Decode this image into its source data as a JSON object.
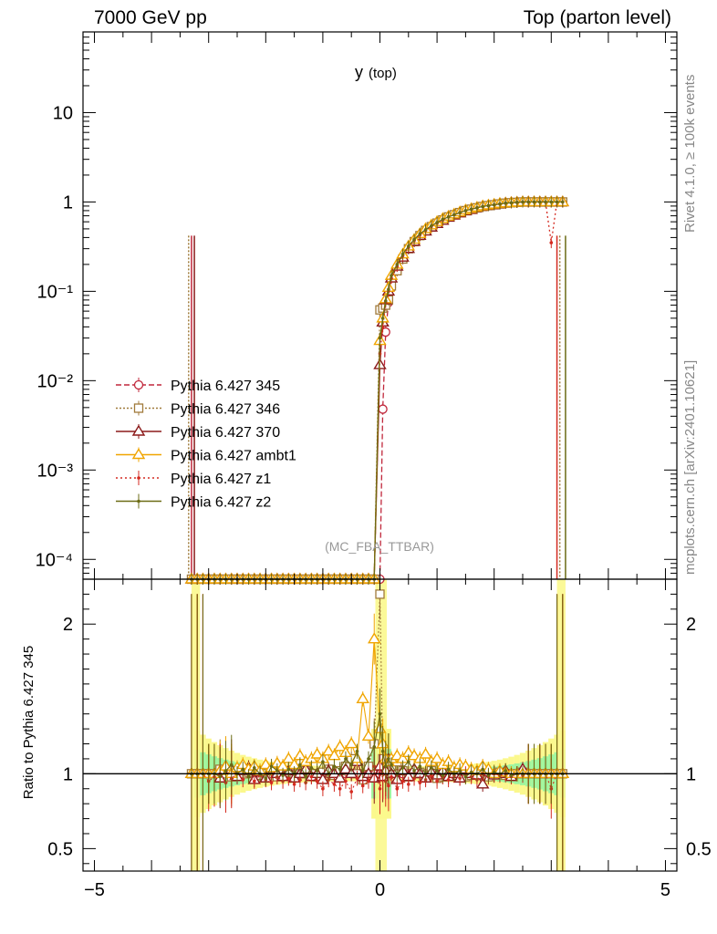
{
  "header": {
    "left": "7000 GeV pp",
    "right": "Top (parton level)"
  },
  "side_labels": {
    "rivet": "Rivet 4.1.0, ≥ 100k events",
    "mcplots": "mcplots.cern.ch [arXiv:2401.10621]"
  },
  "chart_data": {
    "type": "line",
    "title": "y",
    "title_sub": "(top)",
    "watermark": "(MC_FBA_TTBAR)",
    "xlim": [
      -5.2,
      5.2
    ],
    "x_ticks": [
      "−5",
      "0",
      "5"
    ],
    "x_tick_values": [
      -5,
      0,
      5
    ],
    "top_panel": {
      "yscale": "log",
      "ylim": [
        6e-05,
        80
      ],
      "y_tick_labels": [
        "10",
        "1",
        "10⁻¹",
        "10⁻²",
        "10⁻³",
        "10⁻⁴"
      ],
      "y_tick_values": [
        10,
        1,
        0.1,
        0.01,
        0.001,
        0.0001
      ]
    },
    "ratio_panel": {
      "ylabel": "Ratio to Pythia 6.427 345",
      "ylim": [
        0.35,
        2.3
      ],
      "y_tick_labels": [
        "2",
        "1",
        "0.5"
      ],
      "y_tick_values": [
        2,
        1,
        0.5
      ]
    },
    "x": [
      -3.3,
      -3.2,
      -3.1,
      -3.0,
      -2.9,
      -2.8,
      -2.7,
      -2.6,
      -2.5,
      -2.4,
      -2.3,
      -2.2,
      -2.1,
      -2.0,
      -1.9,
      -1.8,
      -1.7,
      -1.6,
      -1.5,
      -1.4,
      -1.3,
      -1.2,
      -1.1,
      -1.0,
      -0.9,
      -0.8,
      -0.7,
      -0.6,
      -0.5,
      -0.4,
      -0.3,
      -0.2,
      -0.1,
      0.0,
      0.05,
      0.1,
      0.15,
      0.2,
      0.3,
      0.4,
      0.5,
      0.6,
      0.7,
      0.8,
      0.9,
      1.0,
      1.1,
      1.2,
      1.3,
      1.4,
      1.5,
      1.6,
      1.7,
      1.8,
      1.9,
      2.0,
      2.1,
      2.2,
      2.3,
      2.4,
      2.5,
      2.6,
      2.7,
      2.8,
      2.9,
      3.0,
      3.1,
      3.2
    ],
    "series": [
      {
        "name": "Pythia 6.427 345",
        "color": "#c0273b",
        "marker": "open-circle",
        "dash": "6,3",
        "values": [
          6e-05,
          6e-05,
          6e-05,
          6e-05,
          6e-05,
          6e-05,
          6e-05,
          6e-05,
          6e-05,
          6e-05,
          6e-05,
          6e-05,
          6e-05,
          6e-05,
          6e-05,
          6e-05,
          6e-05,
          6e-05,
          6e-05,
          6e-05,
          6e-05,
          6e-05,
          6e-05,
          6e-05,
          6e-05,
          6e-05,
          6e-05,
          6e-05,
          6e-05,
          6e-05,
          6e-05,
          6e-05,
          6e-05,
          6e-05,
          0.0048,
          0.035,
          0.075,
          0.11,
          0.17,
          0.23,
          0.3,
          0.36,
          0.42,
          0.48,
          0.53,
          0.58,
          0.63,
          0.68,
          0.72,
          0.76,
          0.8,
          0.83,
          0.86,
          0.89,
          0.91,
          0.93,
          0.95,
          0.97,
          0.98,
          0.99,
          1.0,
          1.0,
          1.0,
          1.0,
          1.0,
          1.0,
          1.0,
          1.0
        ],
        "ratio": [
          1.0,
          1.0,
          1.0,
          1.0,
          1.0,
          1.0,
          1.0,
          1.0,
          1.0,
          1.0,
          1.0,
          1.0,
          1.0,
          1.0,
          1.0,
          1.0,
          1.0,
          1.0,
          1.0,
          1.0,
          1.0,
          1.0,
          1.0,
          1.0,
          1.0,
          1.0,
          1.0,
          1.0,
          1.0,
          1.0,
          1.0,
          1.0,
          1.0,
          1.0,
          1.0,
          1.0,
          1.0,
          1.0,
          1.0,
          1.0,
          1.0,
          1.0,
          1.0,
          1.0,
          1.0,
          1.0,
          1.0,
          1.0,
          1.0,
          1.0,
          1.0,
          1.0,
          1.0,
          1.0,
          1.0,
          1.0,
          1.0,
          1.0,
          1.0,
          1.0,
          1.0,
          1.0,
          1.0,
          1.0,
          1.0,
          1.0,
          1.0,
          1.0
        ]
      },
      {
        "name": "Pythia 6.427 346",
        "color": "#a07a3a",
        "marker": "open-square",
        "dash": "2,2",
        "values": [
          6e-05,
          6e-05,
          6e-05,
          6e-05,
          6e-05,
          6e-05,
          6e-05,
          6e-05,
          6e-05,
          6e-05,
          6e-05,
          6e-05,
          6e-05,
          6e-05,
          6e-05,
          6e-05,
          6e-05,
          6e-05,
          6e-05,
          6e-05,
          6e-05,
          6e-05,
          6e-05,
          6e-05,
          6e-05,
          6e-05,
          6e-05,
          6e-05,
          6e-05,
          6e-05,
          6e-05,
          6e-05,
          6e-05,
          0.062,
          0.065,
          0.07,
          0.08,
          0.115,
          0.17,
          0.23,
          0.3,
          0.36,
          0.42,
          0.48,
          0.53,
          0.58,
          0.63,
          0.68,
          0.72,
          0.76,
          0.8,
          0.83,
          0.86,
          0.89,
          0.91,
          0.93,
          0.95,
          0.97,
          0.98,
          0.99,
          1.0,
          1.0,
          1.0,
          1.0,
          1.0,
          1.0,
          1.0,
          1.0
        ],
        "ratio": [
          1.0,
          1.0,
          1.0,
          1.0,
          1.0,
          1.03,
          1.0,
          0.98,
          1.02,
          1.0,
          1.01,
          1.02,
          0.99,
          1.0,
          1.02,
          0.98,
          1.0,
          1.01,
          0.99,
          1.0,
          1.02,
          1.0,
          0.98,
          1.01,
          1.03,
          0.99,
          1.02,
          1.05,
          1.1,
          1.0,
          0.96,
          1.05,
          1.2,
          2.2,
          1.1,
          1.02,
          1.0,
          1.05,
          1.08,
          1.02,
          0.98,
          1.0,
          1.01,
          0.99,
          1.02,
          0.97,
          0.98,
          1.0,
          0.99,
          1.01,
          0.98,
          0.99,
          1.0,
          1.02,
          0.98,
          1.0,
          1.01,
          0.99,
          1.0,
          1.0,
          1.01,
          1.0,
          1.0,
          1.0,
          1.0,
          1.0,
          1.0,
          1.0
        ]
      },
      {
        "name": "Pythia 6.427 370",
        "color": "#8b1a1a",
        "marker": "open-triangle",
        "dash": "",
        "values": [
          6e-05,
          6e-05,
          6e-05,
          6e-05,
          6e-05,
          6e-05,
          6e-05,
          6e-05,
          6e-05,
          6e-05,
          6e-05,
          6e-05,
          6e-05,
          6e-05,
          6e-05,
          6e-05,
          6e-05,
          6e-05,
          6e-05,
          6e-05,
          6e-05,
          6e-05,
          6e-05,
          6e-05,
          6e-05,
          6e-05,
          6e-05,
          6e-05,
          6e-05,
          6e-05,
          6e-05,
          6e-05,
          6e-05,
          0.015,
          0.045,
          0.08,
          0.1,
          0.14,
          0.19,
          0.24,
          0.3,
          0.36,
          0.42,
          0.47,
          0.52,
          0.57,
          0.62,
          0.67,
          0.71,
          0.75,
          0.79,
          0.82,
          0.86,
          0.89,
          0.91,
          0.93,
          0.95,
          0.97,
          0.98,
          0.99,
          1.0,
          1.0,
          1.0,
          1.0,
          1.0,
          1.0,
          1.0,
          1.0
        ],
        "ratio": [
          1.0,
          1.0,
          1.0,
          1.0,
          1.0,
          0.97,
          1.05,
          1.03,
          0.98,
          1.02,
          1.04,
          0.96,
          1.01,
          0.97,
          1.03,
          1.0,
          0.98,
          1.02,
          0.97,
          1.0,
          1.03,
          0.98,
          1.0,
          0.96,
          1.02,
          1.0,
          0.97,
          1.03,
          1.0,
          1.08,
          0.98,
          1.0,
          0.97,
          1.05,
          0.98,
          1.02,
          1.1,
          1.0,
          0.96,
          1.02,
          0.98,
          1.03,
          1.0,
          0.97,
          1.01,
          0.99,
          1.02,
          0.98,
          1.0,
          0.97,
          1.03,
          1.0,
          0.99,
          0.93,
          1.01,
          0.99,
          1.0,
          1.02,
          0.98,
          1.0,
          1.03,
          1.0,
          1.0,
          1.0,
          1.0,
          1.0,
          1.0,
          1.0
        ]
      },
      {
        "name": "Pythia 6.427 ambt1",
        "color": "#f0a500",
        "marker": "open-triangle",
        "dash": "",
        "values": [
          6e-05,
          6e-05,
          6e-05,
          6e-05,
          6e-05,
          6e-05,
          6e-05,
          6e-05,
          6e-05,
          6e-05,
          6e-05,
          6e-05,
          6e-05,
          6e-05,
          6e-05,
          6e-05,
          6e-05,
          6e-05,
          6e-05,
          6e-05,
          6e-05,
          6e-05,
          6e-05,
          6e-05,
          6e-05,
          6e-05,
          6e-05,
          6e-05,
          6e-05,
          6e-05,
          6e-05,
          6e-05,
          6e-05,
          0.028,
          0.05,
          0.082,
          0.11,
          0.15,
          0.2,
          0.26,
          0.32,
          0.38,
          0.44,
          0.5,
          0.55,
          0.6,
          0.65,
          0.69,
          0.73,
          0.77,
          0.81,
          0.84,
          0.87,
          0.9,
          0.92,
          0.94,
          0.96,
          0.97,
          0.98,
          0.99,
          1.0,
          1.0,
          1.0,
          1.0,
          1.0,
          1.0,
          1.0,
          1.0
        ],
        "ratio": [
          1.0,
          1.0,
          1.0,
          1.0,
          1.0,
          1.02,
          1.05,
          1.0,
          1.04,
          1.06,
          1.03,
          1.05,
          1.02,
          1.06,
          1.04,
          1.07,
          1.05,
          1.1,
          1.06,
          1.12,
          1.08,
          1.1,
          1.13,
          1.1,
          1.15,
          1.12,
          1.18,
          1.14,
          1.2,
          1.1,
          1.5,
          1.25,
          1.9,
          1.3,
          1.2,
          1.1,
          1.08,
          1.1,
          1.12,
          1.1,
          1.14,
          1.12,
          1.1,
          1.13,
          1.08,
          1.1,
          1.06,
          1.08,
          1.04,
          1.06,
          1.05,
          1.03,
          1.02,
          1.05,
          1.03,
          1.0,
          1.02,
          1.01,
          1.0,
          1.0,
          1.0,
          1.0,
          1.0,
          1.0,
          1.0,
          1.0,
          1.0,
          1.0
        ]
      },
      {
        "name": "Pythia 6.427 z1",
        "color": "#d42a20",
        "marker": "dot",
        "dash": "2,3",
        "values": [
          6e-05,
          6e-05,
          6e-05,
          6e-05,
          6e-05,
          6e-05,
          6e-05,
          6e-05,
          6e-05,
          6e-05,
          6e-05,
          6e-05,
          6e-05,
          6e-05,
          6e-05,
          6e-05,
          6e-05,
          6e-05,
          6e-05,
          6e-05,
          6e-05,
          6e-05,
          6e-05,
          6e-05,
          6e-05,
          6e-05,
          6e-05,
          6e-05,
          6e-05,
          6e-05,
          6e-05,
          6e-05,
          6e-05,
          0.02,
          0.04,
          0.075,
          0.1,
          0.14,
          0.19,
          0.25,
          0.31,
          0.37,
          0.43,
          0.48,
          0.53,
          0.58,
          0.63,
          0.68,
          0.72,
          0.76,
          0.8,
          0.83,
          0.86,
          0.89,
          0.91,
          0.93,
          0.95,
          0.97,
          0.98,
          0.99,
          1.0,
          1.0,
          1.0,
          1.0,
          1.0,
          0.35,
          1.0,
          1.0
        ],
        "ratio": [
          1.0,
          1.0,
          1.0,
          0.95,
          0.98,
          1.0,
          0.94,
          0.97,
          1.0,
          0.96,
          0.98,
          0.95,
          0.99,
          0.96,
          0.94,
          0.98,
          0.95,
          0.97,
          0.93,
          0.96,
          0.94,
          0.98,
          0.95,
          0.9,
          0.96,
          0.93,
          0.9,
          0.95,
          0.88,
          0.97,
          0.92,
          0.95,
          1.05,
          0.9,
          1.0,
          0.95,
          0.92,
          0.98,
          0.9,
          0.95,
          0.93,
          0.97,
          0.94,
          0.96,
          0.99,
          0.95,
          0.98,
          0.96,
          0.99,
          0.97,
          1.0,
          0.98,
          0.96,
          1.0,
          0.98,
          1.0,
          0.99,
          1.0,
          0.98,
          1.0,
          0.99,
          1.0,
          1.0,
          1.0,
          1.0,
          0.9,
          1.0,
          1.0
        ]
      },
      {
        "name": "Pythia 6.427 z2",
        "color": "#6b6b14",
        "marker": "dot",
        "dash": "",
        "values": [
          6e-05,
          6e-05,
          6e-05,
          6e-05,
          6e-05,
          6e-05,
          6e-05,
          6e-05,
          6e-05,
          6e-05,
          6e-05,
          6e-05,
          6e-05,
          6e-05,
          6e-05,
          6e-05,
          6e-05,
          6e-05,
          6e-05,
          6e-05,
          6e-05,
          6e-05,
          6e-05,
          6e-05,
          6e-05,
          6e-05,
          6e-05,
          6e-05,
          6e-05,
          6e-05,
          6e-05,
          6e-05,
          6e-05,
          0.03,
          0.05,
          0.078,
          0.105,
          0.15,
          0.2,
          0.26,
          0.32,
          0.38,
          0.44,
          0.49,
          0.54,
          0.59,
          0.64,
          0.68,
          0.72,
          0.76,
          0.8,
          0.83,
          0.86,
          0.89,
          0.91,
          0.93,
          0.95,
          0.97,
          0.98,
          0.99,
          1.0,
          1.0,
          1.0,
          1.0,
          1.0,
          1.0,
          1.0,
          1.0
        ],
        "ratio": [
          1.0,
          1.0,
          1.0,
          1.0,
          1.0,
          0.98,
          1.02,
          1.06,
          1.0,
          1.03,
          0.98,
          1.04,
          1.0,
          0.97,
          1.05,
          1.02,
          0.99,
          1.03,
          1.0,
          1.06,
          0.98,
          1.04,
          1.02,
          1.08,
          1.0,
          1.05,
          1.03,
          1.1,
          1.06,
          1.15,
          1.02,
          1.1,
          1.18,
          1.4,
          1.15,
          1.05,
          1.1,
          1.06,
          1.0,
          1.04,
          1.08,
          1.02,
          1.05,
          1.0,
          1.04,
          1.02,
          0.99,
          1.03,
          1.0,
          1.02,
          0.98,
          1.01,
          1.0,
          1.03,
          0.99,
          1.01,
          1.0,
          1.02,
          0.99,
          1.0,
          1.0,
          1.0,
          1.0,
          1.0,
          1.0,
          1.0,
          1.0,
          1.0
        ]
      }
    ]
  }
}
